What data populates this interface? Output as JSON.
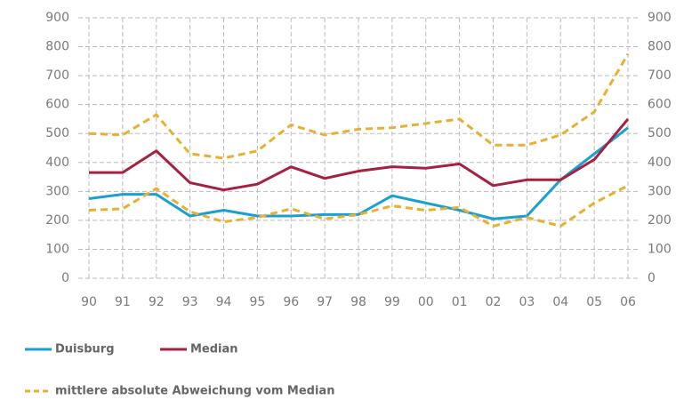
{
  "chart_data": {
    "type": "line",
    "categories": [
      "90",
      "91",
      "92",
      "93",
      "94",
      "95",
      "96",
      "97",
      "98",
      "99",
      "00",
      "01",
      "02",
      "03",
      "04",
      "05",
      "06"
    ],
    "series": [
      {
        "name": "Duisburg",
        "color": "#1aa0d0",
        "values": [
          275,
          290,
          290,
          215,
          235,
          215,
          215,
          220,
          220,
          285,
          260,
          235,
          205,
          215,
          340,
          430,
          520
        ]
      },
      {
        "name": "Median",
        "color": "#a4213f",
        "values": [
          365,
          365,
          440,
          330,
          305,
          325,
          385,
          345,
          370,
          385,
          380,
          395,
          320,
          340,
          340,
          410,
          550
        ]
      },
      {
        "name": "mittlere absolute Abweichung vom Median",
        "color": "#e8b030",
        "dashed": true,
        "values": [
          500,
          495,
          565,
          430,
          415,
          440,
          530,
          495,
          515,
          520,
          535,
          550,
          460,
          460,
          495,
          575,
          775
        ],
        "values_lower": [
          235,
          240,
          310,
          230,
          195,
          210,
          240,
          205,
          220,
          250,
          235,
          245,
          180,
          210,
          180,
          260,
          320
        ]
      }
    ],
    "ylim": [
      0,
      900
    ],
    "yticks": [
      0,
      100,
      200,
      300,
      400,
      500,
      600,
      700,
      800,
      900
    ],
    "y2lim": [
      0,
      900
    ],
    "y2ticks": [
      0,
      100,
      200,
      300,
      400,
      500,
      600,
      700,
      800,
      900
    ],
    "grid": true
  }
}
